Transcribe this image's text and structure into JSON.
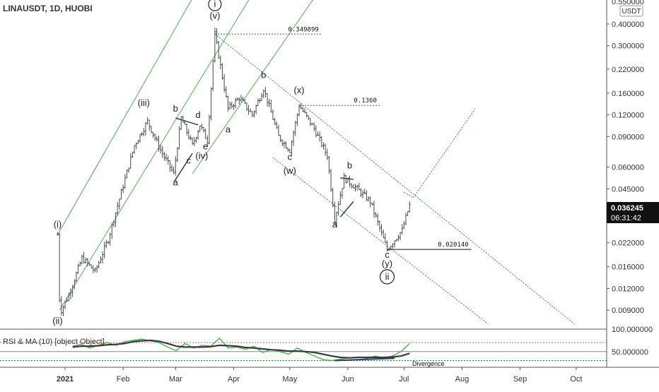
{
  "colors": {
    "bar": "#4a4a4a",
    "channel": "#4caf50",
    "dotted": "#2e8b3a",
    "rsi": "#4caf50",
    "ma": "#3a3a3a",
    "axis_text": "#333333",
    "price_badge": "#111111",
    "grid_line": "#555555",
    "overbought": "#d66a6a",
    "divergence": "#2b3d6b"
  },
  "header": {
    "symbol": "LINAUSDT, 1D, HUOBI",
    "currency": "USDT",
    "top_cut_label": "0.550000"
  },
  "price_badge": {
    "price": "0.036245",
    "countdown": "06:31:42"
  },
  "rsi_panel": {
    "title": "RSI & MA (10) [object Object]",
    "divergence_label": "Divergence"
  },
  "chart_data": [
    {
      "type": "candlestick",
      "x_axis": {
        "ticks": [
          "2021",
          "Feb",
          "Mar",
          "Apr",
          "May",
          "Jun",
          "Jul",
          "Aug",
          "Sep",
          "Oct"
        ]
      },
      "y_axis": {
        "scale": "log",
        "ticks": [
          "0.400000",
          "0.300000",
          "0.220000",
          "0.160000",
          "0.120000",
          "0.090000",
          "0.060000",
          "0.045000",
          "0.022000",
          "0.016000",
          "0.012000",
          "0.009000"
        ],
        "ylim": [
          0.007,
          0.55
        ]
      },
      "price_waypoints": [
        {
          "date": "2020-12-28",
          "value": 0.0245
        },
        {
          "date": "2020-12-29",
          "value": 0.0105
        },
        {
          "date": "2020-12-30",
          "value": 0.009
        },
        {
          "date": "2021-01-03",
          "value": 0.011
        },
        {
          "date": "2021-01-10",
          "value": 0.018
        },
        {
          "date": "2021-01-17",
          "value": 0.015
        },
        {
          "date": "2021-01-24",
          "value": 0.023
        },
        {
          "date": "2021-01-31",
          "value": 0.043
        },
        {
          "date": "2021-02-07",
          "value": 0.08
        },
        {
          "date": "2021-02-14",
          "value": 0.11
        },
        {
          "date": "2021-02-21",
          "value": 0.075
        },
        {
          "date": "2021-02-28",
          "value": 0.055
        },
        {
          "date": "2021-03-04",
          "value": 0.115
        },
        {
          "date": "2021-03-10",
          "value": 0.08
        },
        {
          "date": "2021-03-14",
          "value": 0.105
        },
        {
          "date": "2021-03-18",
          "value": 0.085
        },
        {
          "date": "2021-03-22",
          "value": 0.35
        },
        {
          "date": "2021-03-29",
          "value": 0.13
        },
        {
          "date": "2021-04-04",
          "value": 0.15
        },
        {
          "date": "2021-04-11",
          "value": 0.12
        },
        {
          "date": "2021-04-17",
          "value": 0.17
        },
        {
          "date": "2021-04-25",
          "value": 0.09
        },
        {
          "date": "2021-05-01",
          "value": 0.075
        },
        {
          "date": "2021-05-06",
          "value": 0.136
        },
        {
          "date": "2021-05-14",
          "value": 0.1
        },
        {
          "date": "2021-05-21",
          "value": 0.07
        },
        {
          "date": "2021-05-25",
          "value": 0.03
        },
        {
          "date": "2021-05-30",
          "value": 0.052
        },
        {
          "date": "2021-06-06",
          "value": 0.045
        },
        {
          "date": "2021-06-13",
          "value": 0.038
        },
        {
          "date": "2021-06-22",
          "value": 0.0201
        },
        {
          "date": "2021-06-30",
          "value": 0.026
        },
        {
          "date": "2021-07-04",
          "value": 0.0362
        }
      ],
      "annotations": [
        {
          "label": "(i)",
          "date": "2020-12-28",
          "value": 0.027
        },
        {
          "label": "(ii)",
          "date": "2020-12-28",
          "value": 0.0075
        },
        {
          "label": "(iii)",
          "date": "2021-02-12",
          "value": 0.135
        },
        {
          "label": "a",
          "date": "2021-03-01",
          "value": 0.047
        },
        {
          "label": "b",
          "date": "2021-03-01",
          "value": 0.125
        },
        {
          "label": "c",
          "date": "2021-03-08",
          "value": 0.063
        },
        {
          "label": "d",
          "date": "2021-03-13",
          "value": 0.115
        },
        {
          "label": "e",
          "date": "2021-03-17",
          "value": 0.076
        },
        {
          "label": "(iv)",
          "date": "2021-03-15",
          "value": 0.067
        },
        {
          "label": "(v)",
          "date": "2021-03-22",
          "value": 0.43
        },
        {
          "label": "i",
          "date": "2021-03-22",
          "value": 0.5
        },
        {
          "label": "a",
          "date": "2021-03-29",
          "value": 0.095
        },
        {
          "label": "b",
          "date": "2021-04-17",
          "value": 0.195
        },
        {
          "label": "c",
          "date": "2021-05-01",
          "value": 0.066
        },
        {
          "label": "(w)",
          "date": "2021-05-01",
          "value": 0.055
        },
        {
          "label": "(x)",
          "date": "2021-05-06",
          "value": 0.16
        },
        {
          "label": "a",
          "date": "2021-05-25",
          "value": 0.027
        },
        {
          "label": "b",
          "date": "2021-06-02",
          "value": 0.059
        },
        {
          "label": "c",
          "date": "2021-06-22",
          "value": 0.018
        },
        {
          "label": "(y)",
          "date": "2021-06-22",
          "value": 0.016
        },
        {
          "label": "ii",
          "date": "2021-06-22",
          "value": 0.0135
        }
      ],
      "levels": [
        {
          "label": "0.349899",
          "value": 0.3499,
          "from": "2021-03-22",
          "to": "2021-05-18"
        },
        {
          "label": "0.1360",
          "value": 0.136,
          "from": "2021-05-06",
          "to": "2021-06-18"
        },
        {
          "label": "0.020140",
          "value": 0.02014,
          "from": "2021-06-22",
          "to": "2021-08-06"
        }
      ]
    },
    {
      "type": "line",
      "title": "RSI & MA (10) [object Object]",
      "y_axis": {
        "ticks": [
          "100.000000",
          "50.000000"
        ],
        "ylim": [
          15,
          100
        ]
      },
      "reference_lines": [
        70,
        50,
        30
      ],
      "series": [
        {
          "values": [
            62,
            66,
            58,
            64,
            70,
            64,
            72,
            75,
            78,
            74,
            70,
            60,
            52,
            68,
            58,
            64,
            62,
            80,
            58,
            60,
            55,
            62,
            48,
            55,
            50,
            44,
            58,
            48,
            40,
            32,
            30,
            33,
            36,
            38,
            35,
            40,
            36,
            40,
            50,
            68
          ]
        },
        {
          "values": [
            60,
            62,
            62,
            63,
            65,
            66,
            68,
            72,
            74,
            75,
            73,
            68,
            62,
            60,
            60,
            60,
            61,
            64,
            63,
            62,
            59,
            58,
            56,
            54,
            53,
            51,
            51,
            50,
            48,
            44,
            40,
            37,
            36,
            37,
            37,
            37,
            37,
            38,
            40,
            46
          ]
        }
      ]
    }
  ]
}
